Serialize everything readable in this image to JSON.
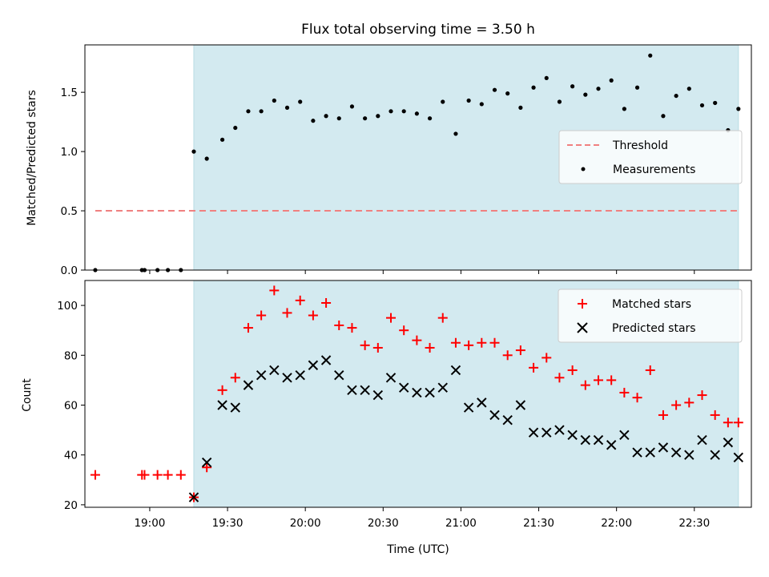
{
  "chart_data": [
    {
      "panel": "top",
      "type": "scatter",
      "title": "Flux total observing time = 3.50 h",
      "ylabel": "Matched/Predicted stars",
      "xlabel": "",
      "ylim": [
        0,
        1.9
      ],
      "yticks": [
        0.0,
        0.5,
        1.0,
        1.5
      ],
      "ytick_labels": [
        "0.0",
        "0.5",
        "1.0",
        "1.5"
      ],
      "shaded_interval": [
        "19:17",
        "22:47"
      ],
      "shade_color": "#d3eaf0",
      "threshold": {
        "name": "Threshold",
        "value": 0.5,
        "x_range": [
          "18:39",
          "22:47"
        ],
        "color": "#f08080"
      },
      "series": [
        {
          "name": "Measurements",
          "color": "#000000",
          "points": [
            [
              "18:39",
              0.0
            ],
            [
              "18:57",
              0.0
            ],
            [
              "18:58",
              0.0
            ],
            [
              "19:03",
              0.0
            ],
            [
              "19:07",
              0.0
            ],
            [
              "19:12",
              0.0
            ],
            [
              "19:17",
              1.0
            ],
            [
              "19:22",
              0.94
            ],
            [
              "19:28",
              1.1
            ],
            [
              "19:33",
              1.2
            ],
            [
              "19:38",
              1.34
            ],
            [
              "19:43",
              1.34
            ],
            [
              "19:48",
              1.43
            ],
            [
              "19:53",
              1.37
            ],
            [
              "19:58",
              1.42
            ],
            [
              "20:03",
              1.26
            ],
            [
              "20:08",
              1.3
            ],
            [
              "20:13",
              1.28
            ],
            [
              "20:18",
              1.38
            ],
            [
              "20:23",
              1.28
            ],
            [
              "20:28",
              1.3
            ],
            [
              "20:33",
              1.34
            ],
            [
              "20:38",
              1.34
            ],
            [
              "20:43",
              1.32
            ],
            [
              "20:48",
              1.28
            ],
            [
              "20:53",
              1.42
            ],
            [
              "20:58",
              1.15
            ],
            [
              "21:03",
              1.43
            ],
            [
              "21:08",
              1.4
            ],
            [
              "21:13",
              1.52
            ],
            [
              "21:18",
              1.49
            ],
            [
              "21:23",
              1.37
            ],
            [
              "21:28",
              1.54
            ],
            [
              "21:33",
              1.62
            ],
            [
              "21:38",
              1.42
            ],
            [
              "21:43",
              1.55
            ],
            [
              "21:48",
              1.48
            ],
            [
              "21:53",
              1.53
            ],
            [
              "21:58",
              1.6
            ],
            [
              "22:03",
              1.36
            ],
            [
              "22:08",
              1.54
            ],
            [
              "22:13",
              1.81
            ],
            [
              "22:18",
              1.3
            ],
            [
              "22:23",
              1.47
            ],
            [
              "22:28",
              1.53
            ],
            [
              "22:33",
              1.39
            ],
            [
              "22:38",
              1.41
            ],
            [
              "22:43",
              1.18
            ],
            [
              "22:47",
              1.36
            ]
          ]
        }
      ],
      "legend": {
        "position": "center-right",
        "entries": [
          "Threshold",
          "Measurements"
        ]
      }
    },
    {
      "panel": "bottom",
      "type": "scatter",
      "title": "",
      "ylabel": "Count",
      "xlabel": "Time (UTC)",
      "ylim": [
        19,
        110
      ],
      "yticks": [
        20,
        40,
        60,
        80,
        100
      ],
      "x_range": [
        "18:35",
        "22:52"
      ],
      "xticks": [
        "19:00",
        "19:30",
        "20:00",
        "20:30",
        "21:00",
        "21:30",
        "22:00",
        "22:30"
      ],
      "shaded_interval": [
        "19:17",
        "22:47"
      ],
      "shade_color": "#d3eaf0",
      "series": [
        {
          "name": "Matched stars",
          "marker": "plus",
          "color": "#ff0000",
          "points": [
            [
              "18:39",
              32
            ],
            [
              "18:57",
              32
            ],
            [
              "18:58",
              32
            ],
            [
              "19:03",
              32
            ],
            [
              "19:07",
              32
            ],
            [
              "19:12",
              32
            ],
            [
              "19:17",
              23
            ],
            [
              "19:22",
              35
            ],
            [
              "19:28",
              66
            ],
            [
              "19:33",
              71
            ],
            [
              "19:38",
              91
            ],
            [
              "19:43",
              96
            ],
            [
              "19:48",
              106
            ],
            [
              "19:53",
              97
            ],
            [
              "19:58",
              102
            ],
            [
              "20:03",
              96
            ],
            [
              "20:08",
              101
            ],
            [
              "20:13",
              92
            ],
            [
              "20:18",
              91
            ],
            [
              "20:23",
              84
            ],
            [
              "20:28",
              83
            ],
            [
              "20:33",
              95
            ],
            [
              "20:38",
              90
            ],
            [
              "20:43",
              86
            ],
            [
              "20:48",
              83
            ],
            [
              "20:53",
              95
            ],
            [
              "20:58",
              85
            ],
            [
              "21:03",
              84
            ],
            [
              "21:08",
              85
            ],
            [
              "21:13",
              85
            ],
            [
              "21:18",
              80
            ],
            [
              "21:23",
              82
            ],
            [
              "21:28",
              75
            ],
            [
              "21:33",
              79
            ],
            [
              "21:38",
              71
            ],
            [
              "21:43",
              74
            ],
            [
              "21:48",
              68
            ],
            [
              "21:53",
              70
            ],
            [
              "21:58",
              70
            ],
            [
              "22:03",
              65
            ],
            [
              "22:08",
              63
            ],
            [
              "22:13",
              74
            ],
            [
              "22:18",
              56
            ],
            [
              "22:23",
              60
            ],
            [
              "22:28",
              61
            ],
            [
              "22:33",
              64
            ],
            [
              "22:38",
              56
            ],
            [
              "22:43",
              53
            ],
            [
              "22:47",
              53
            ]
          ]
        },
        {
          "name": "Predicted stars",
          "marker": "x",
          "color": "#000000",
          "points": [
            [
              "19:17",
              23
            ],
            [
              "19:22",
              37
            ],
            [
              "19:28",
              60
            ],
            [
              "19:33",
              59
            ],
            [
              "19:38",
              68
            ],
            [
              "19:43",
              72
            ],
            [
              "19:48",
              74
            ],
            [
              "19:53",
              71
            ],
            [
              "19:58",
              72
            ],
            [
              "20:03",
              76
            ],
            [
              "20:08",
              78
            ],
            [
              "20:13",
              72
            ],
            [
              "20:18",
              66
            ],
            [
              "20:23",
              66
            ],
            [
              "20:28",
              64
            ],
            [
              "20:33",
              71
            ],
            [
              "20:38",
              67
            ],
            [
              "20:43",
              65
            ],
            [
              "20:48",
              65
            ],
            [
              "20:53",
              67
            ],
            [
              "20:58",
              74
            ],
            [
              "21:03",
              59
            ],
            [
              "21:08",
              61
            ],
            [
              "21:13",
              56
            ],
            [
              "21:18",
              54
            ],
            [
              "21:23",
              60
            ],
            [
              "21:28",
              49
            ],
            [
              "21:33",
              49
            ],
            [
              "21:38",
              50
            ],
            [
              "21:43",
              48
            ],
            [
              "21:48",
              46
            ],
            [
              "21:53",
              46
            ],
            [
              "21:58",
              44
            ],
            [
              "22:03",
              48
            ],
            [
              "22:08",
              41
            ],
            [
              "22:13",
              41
            ],
            [
              "22:18",
              43
            ],
            [
              "22:23",
              41
            ],
            [
              "22:28",
              40
            ],
            [
              "22:33",
              46
            ],
            [
              "22:38",
              40
            ],
            [
              "22:43",
              45
            ],
            [
              "22:47",
              39
            ]
          ]
        }
      ],
      "legend": {
        "position": "top-right",
        "entries": [
          "Matched stars",
          "Predicted stars"
        ]
      }
    }
  ]
}
